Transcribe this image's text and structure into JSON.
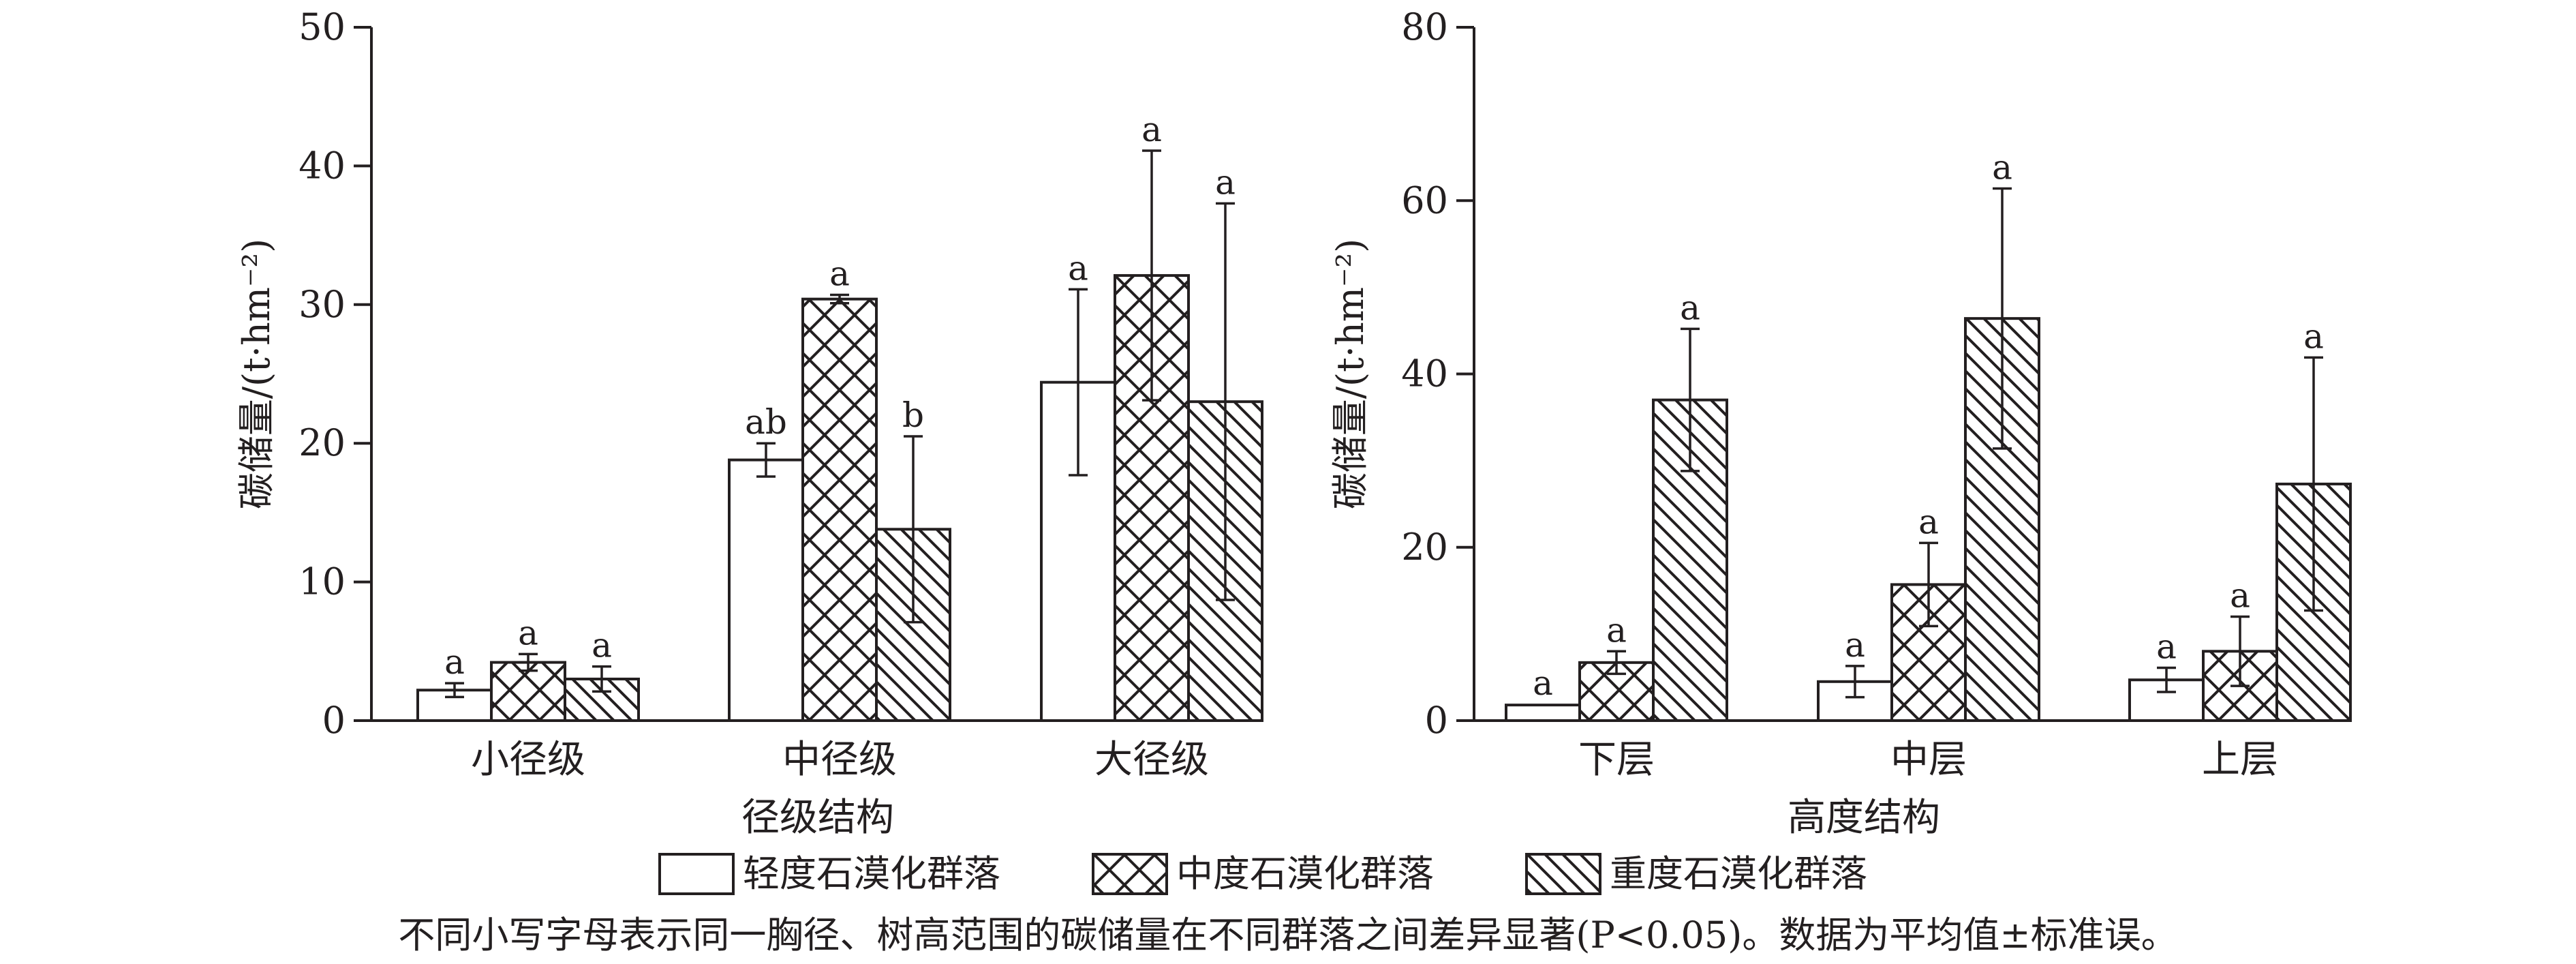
{
  "chart_data": [
    {
      "type": "bar",
      "xlabel": "径级结构",
      "ylabel": "碳储量/(t·hm⁻²)",
      "ylim": [
        0,
        50
      ],
      "yticks": [
        0,
        10,
        20,
        30,
        40,
        50
      ],
      "categories": [
        "小径级",
        "中径级",
        "大径级"
      ],
      "series": [
        {
          "name": "轻度石漠化群落",
          "pattern": "none",
          "values": [
            2.2,
            18.8,
            24.4
          ],
          "errors": [
            0.5,
            1.2,
            6.7
          ],
          "letters": [
            "a",
            "ab",
            "a"
          ]
        },
        {
          "name": "中度石漠化群落",
          "pattern": "crosshatch",
          "values": [
            4.2,
            30.4,
            32.1
          ],
          "errors": [
            0.6,
            0.3,
            9.0
          ],
          "letters": [
            "a",
            "a",
            "a"
          ]
        },
        {
          "name": "重度石漠化群落",
          "pattern": "diagonal",
          "values": [
            3.0,
            13.8,
            23.0
          ],
          "errors": [
            0.9,
            6.7,
            14.3
          ],
          "letters": [
            "a",
            "b",
            "a"
          ]
        }
      ],
      "grid": false
    },
    {
      "type": "bar",
      "xlabel": "高度结构",
      "ylabel": "碳储量/(t·hm⁻²)",
      "ylim": [
        0,
        80
      ],
      "yticks": [
        0,
        20,
        40,
        60,
        80
      ],
      "categories": [
        "下层",
        "中层",
        "上层"
      ],
      "series": [
        {
          "name": "轻度石漠化群落",
          "pattern": "none",
          "values": [
            1.8,
            4.5,
            4.7
          ],
          "errors": [
            0.1,
            1.8,
            1.4
          ],
          "letters": [
            "a",
            "a",
            "a"
          ]
        },
        {
          "name": "中度石漠化群落",
          "pattern": "crosshatch",
          "values": [
            6.7,
            15.7,
            8.0
          ],
          "errors": [
            1.3,
            4.8,
            4.0
          ],
          "letters": [
            "a",
            "a",
            "a"
          ]
        },
        {
          "name": "重度石漠化群落",
          "pattern": "diagonal",
          "values": [
            37.0,
            46.4,
            27.3
          ],
          "errors": [
            8.2,
            15.0,
            14.6
          ],
          "letters": [
            "a",
            "a",
            "a"
          ]
        }
      ],
      "grid": false
    }
  ],
  "legend": {
    "position": "bottom-center",
    "items": [
      {
        "label": "轻度石漠化群落",
        "pattern": "none"
      },
      {
        "label": "中度石漠化群落",
        "pattern": "crosshatch"
      },
      {
        "label": "重度石漠化群落",
        "pattern": "diagonal"
      }
    ]
  },
  "footnote": "不同小写字母表示同一胸径、树高范围的碳储量在不同群落之间差异显著(P<0.05)。数据为平均值±标准误。",
  "colors": {
    "ink": "#231f20",
    "background": "#ffffff"
  }
}
